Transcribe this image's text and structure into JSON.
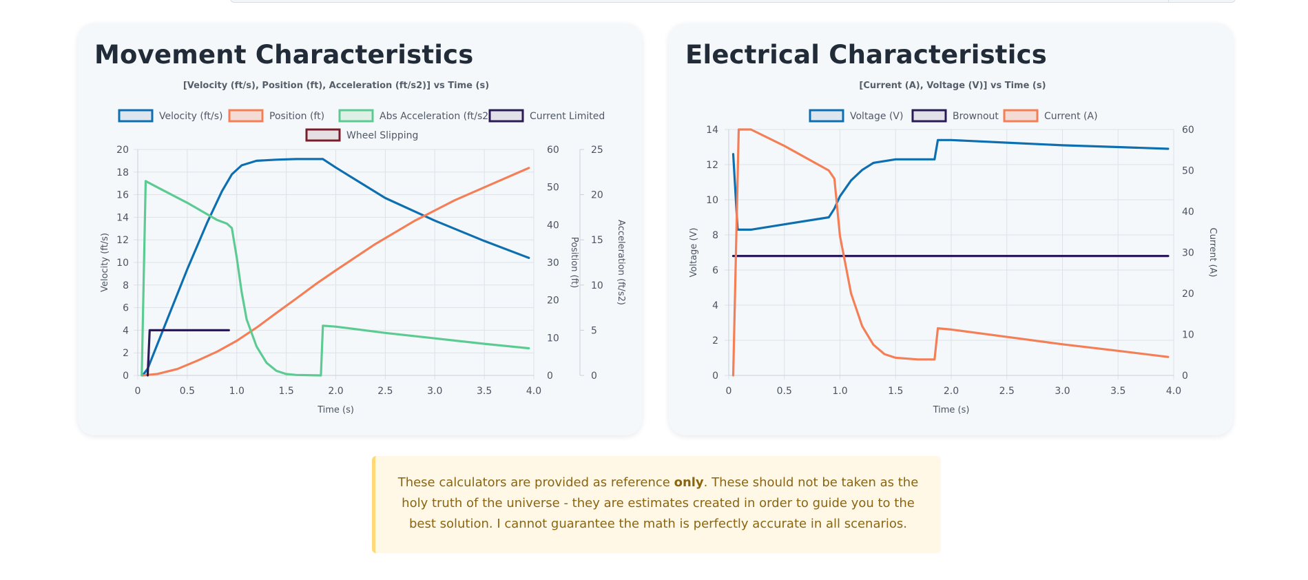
{
  "movement": {
    "title": "Movement Characteristics",
    "chart_data": {
      "type": "line",
      "title": "[Velocity (ft/s), Position (ft), Acceleration (ft/s2)] vs Time (s)",
      "xlabel": "Time (s)",
      "xlim": [
        0,
        4
      ],
      "x_ticks": [
        "0",
        "0.5",
        "1.0",
        "1.5",
        "2.0",
        "2.5",
        "3.0",
        "3.5",
        "4.0"
      ],
      "legend_position": "top",
      "grid": true,
      "axes": [
        {
          "id": "velocity",
          "position": "left",
          "label": "Velocity (ft/s)",
          "range": [
            0,
            20
          ],
          "ticks": [
            "0",
            "2",
            "4",
            "6",
            "8",
            "10",
            "12",
            "14",
            "16",
            "18",
            "20"
          ]
        },
        {
          "id": "position",
          "position": "right",
          "label": "Position (ft)",
          "range": [
            0,
            60
          ],
          "ticks": [
            "0",
            "10",
            "20",
            "30",
            "40",
            "50",
            "60"
          ]
        },
        {
          "id": "acceleration",
          "position": "right",
          "label": "Acceleration (ft/s2)",
          "range": [
            0,
            25
          ],
          "ticks": [
            "0",
            "5",
            "10",
            "15",
            "20",
            "25"
          ]
        }
      ],
      "series": [
        {
          "name": "Velocity (ft/s)",
          "axis": "velocity",
          "color": "#0e6fb0",
          "fill": "#dde5ef",
          "points": [
            [
              0.05,
              0
            ],
            [
              0.1,
              0.6
            ],
            [
              0.3,
              5.0
            ],
            [
              0.5,
              9.4
            ],
            [
              0.7,
              13.5
            ],
            [
              0.85,
              16.3
            ],
            [
              0.95,
              17.8
            ],
            [
              1.05,
              18.6
            ],
            [
              1.2,
              19.0
            ],
            [
              1.4,
              19.1
            ],
            [
              1.6,
              19.15
            ],
            [
              1.87,
              19.15
            ],
            [
              2.0,
              18.4
            ],
            [
              2.5,
              15.7
            ],
            [
              3.0,
              13.7
            ],
            [
              3.5,
              11.9
            ],
            [
              3.95,
              10.4
            ]
          ]
        },
        {
          "name": "Position (ft)",
          "axis": "position",
          "color": "#f47f57",
          "fill": "#f4dcd4",
          "points": [
            [
              0.05,
              0
            ],
            [
              0.2,
              0.4
            ],
            [
              0.4,
              1.7
            ],
            [
              0.6,
              3.9
            ],
            [
              0.8,
              6.3
            ],
            [
              1.0,
              9.2
            ],
            [
              1.2,
              12.7
            ],
            [
              1.4,
              16.6
            ],
            [
              1.6,
              20.4
            ],
            [
              1.8,
              24.3
            ],
            [
              2.0,
              27.9
            ],
            [
              2.4,
              34.9
            ],
            [
              2.8,
              41.1
            ],
            [
              3.2,
              46.5
            ],
            [
              3.6,
              51.1
            ],
            [
              3.95,
              55.1
            ]
          ]
        },
        {
          "name": "Abs Acceleration (ft/s2)",
          "axis": "acceleration",
          "color": "#5ccb92",
          "fill": "#dff1e6",
          "points": [
            [
              0.04,
              0
            ],
            [
              0.08,
              21.5
            ],
            [
              0.2,
              20.8
            ],
            [
              0.5,
              19.1
            ],
            [
              0.8,
              17.2
            ],
            [
              0.9,
              16.8
            ],
            [
              0.95,
              16.3
            ],
            [
              1.0,
              13.0
            ],
            [
              1.05,
              9.2
            ],
            [
              1.1,
              6.2
            ],
            [
              1.2,
              3.2
            ],
            [
              1.3,
              1.4
            ],
            [
              1.4,
              0.5
            ],
            [
              1.5,
              0.15
            ],
            [
              1.6,
              0.05
            ],
            [
              1.85,
              0
            ],
            [
              1.87,
              5.5
            ],
            [
              2.0,
              5.4
            ],
            [
              2.5,
              4.7
            ],
            [
              3.0,
              4.1
            ],
            [
              3.5,
              3.5
            ],
            [
              3.95,
              3.0
            ]
          ]
        },
        {
          "name": "Current Limited",
          "axis": "velocity",
          "color": "#2a1a55",
          "fill": "#e2e1ea",
          "points": [
            [
              0.1,
              0
            ],
            [
              0.12,
              4
            ],
            [
              0.92,
              4
            ]
          ]
        },
        {
          "name": "Wheel Slipping",
          "axis": "velocity",
          "color": "#7b1c2b",
          "fill": "#e6dfe2",
          "points": []
        }
      ]
    }
  },
  "electrical": {
    "title": "Electrical Characteristics",
    "chart_data": {
      "type": "line",
      "title": "[Current (A), Voltage (V)] vs Time (s)",
      "xlabel": "Time (s)",
      "xlim": [
        0,
        4
      ],
      "x_ticks": [
        "0",
        "0.5",
        "1.0",
        "1.5",
        "2.0",
        "2.5",
        "3.0",
        "3.5",
        "4.0"
      ],
      "legend_position": "top",
      "grid": true,
      "axes": [
        {
          "id": "voltage",
          "position": "left",
          "label": "Voltage (V)",
          "range": [
            0,
            14
          ],
          "ticks": [
            "0",
            "2",
            "4",
            "6",
            "8",
            "10",
            "12",
            "14"
          ]
        },
        {
          "id": "current",
          "position": "right",
          "label": "Current (A)",
          "range": [
            0,
            60
          ],
          "ticks": [
            "0",
            "10",
            "20",
            "30",
            "40",
            "50",
            "60"
          ]
        }
      ],
      "series": [
        {
          "name": "Voltage (V)",
          "axis": "voltage",
          "color": "#0e6fb0",
          "fill": "#dde5ef",
          "points": [
            [
              0.04,
              12.6
            ],
            [
              0.08,
              8.3
            ],
            [
              0.2,
              8.3
            ],
            [
              0.5,
              8.6
            ],
            [
              0.9,
              9.0
            ],
            [
              0.95,
              9.5
            ],
            [
              1.0,
              10.2
            ],
            [
              1.1,
              11.1
            ],
            [
              1.2,
              11.7
            ],
            [
              1.3,
              12.1
            ],
            [
              1.5,
              12.3
            ],
            [
              1.85,
              12.3
            ],
            [
              1.88,
              13.4
            ],
            [
              2.0,
              13.4
            ],
            [
              2.5,
              13.25
            ],
            [
              3.0,
              13.1
            ],
            [
              3.5,
              13.0
            ],
            [
              3.95,
              12.9
            ]
          ]
        },
        {
          "name": "Brownout",
          "axis": "voltage",
          "color": "#2a1a55",
          "fill": "#e2e1ea",
          "points": [
            [
              0.04,
              6.8
            ],
            [
              3.95,
              6.8
            ]
          ]
        },
        {
          "name": "Current (A)",
          "axis": "current",
          "color": "#f47f57",
          "fill": "#f4dcd4",
          "points": [
            [
              0.04,
              0
            ],
            [
              0.09,
              60
            ],
            [
              0.2,
              60
            ],
            [
              0.5,
              56
            ],
            [
              0.9,
              50
            ],
            [
              0.95,
              48
            ],
            [
              1.0,
              34
            ],
            [
              1.05,
              27
            ],
            [
              1.1,
              20
            ],
            [
              1.2,
              12
            ],
            [
              1.3,
              7.5
            ],
            [
              1.4,
              5.2
            ],
            [
              1.5,
              4.3
            ],
            [
              1.7,
              3.9
            ],
            [
              1.85,
              3.9
            ],
            [
              1.88,
              11.5
            ],
            [
              2.0,
              11.2
            ],
            [
              2.5,
              9.4
            ],
            [
              3.0,
              7.6
            ],
            [
              3.5,
              6.0
            ],
            [
              3.95,
              4.5
            ]
          ]
        }
      ]
    }
  },
  "notice": {
    "part1": "These calculators are provided as reference ",
    "bold": "only",
    "part2": ". These should not be taken as the holy truth of the universe - they are estimates created in order to guide you to the best solution. I cannot guarantee the math is perfectly accurate in all scenarios."
  }
}
